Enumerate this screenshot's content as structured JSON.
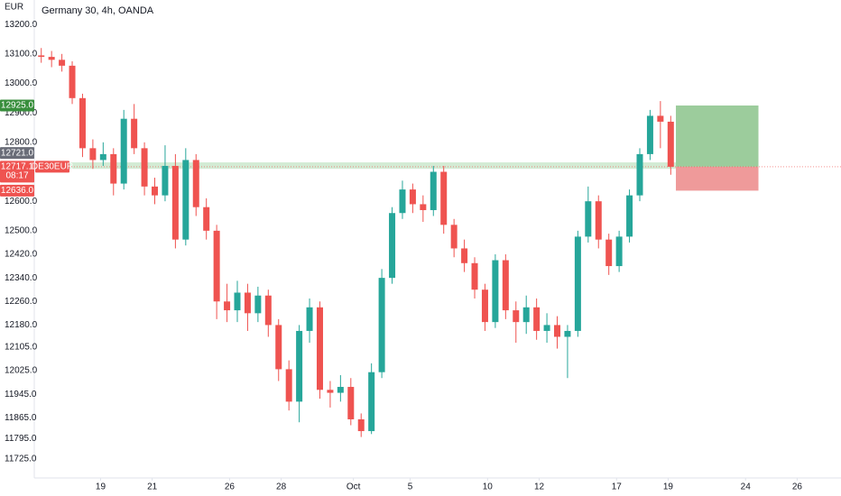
{
  "chart_data": {
    "type": "candlestick",
    "title": "Germany 30, 4h, OANDA",
    "y_axis_label": "EUR",
    "symbol": "DE30EUR",
    "up_color": "#26a69a",
    "down_color": "#ef5350",
    "grid": false,
    "xlim": [
      -2.5,
      28.7
    ],
    "ylim": [
      11661,
      13283
    ],
    "xticks": [
      {
        "value": 0,
        "label": "19"
      },
      {
        "value": 2,
        "label": "21"
      },
      {
        "value": 5,
        "label": "26"
      },
      {
        "value": 7,
        "label": "28"
      },
      {
        "value": 9.8,
        "label": "Oct"
      },
      {
        "value": 12,
        "label": "5"
      },
      {
        "value": 15,
        "label": "10"
      },
      {
        "value": 17,
        "label": "12"
      },
      {
        "value": 20,
        "label": "17"
      },
      {
        "value": 22,
        "label": "19"
      },
      {
        "value": 25,
        "label": "24"
      },
      {
        "value": 27,
        "label": "26"
      }
    ],
    "yticks": [
      {
        "value": 13200,
        "label": "13200.0"
      },
      {
        "value": 13100,
        "label": "13100.0"
      },
      {
        "value": 13000,
        "label": "13000.0"
      },
      {
        "value": 12900,
        "label": "12900.0"
      },
      {
        "value": 12800,
        "label": "12800.0"
      },
      {
        "value": 12600,
        "label": "12600.0"
      },
      {
        "value": 12500,
        "label": "12500.0"
      },
      {
        "value": 12420,
        "label": "12420.0"
      },
      {
        "value": 12340,
        "label": "12340.0"
      },
      {
        "value": 12260,
        "label": "12260.0"
      },
      {
        "value": 12180,
        "label": "12180.0"
      },
      {
        "value": 12105,
        "label": "12105.0"
      },
      {
        "value": 12025,
        "label": "12025.0"
      },
      {
        "value": 11945,
        "label": "11945.0"
      },
      {
        "value": 11865,
        "label": "11865.0"
      },
      {
        "value": 11795,
        "label": "11795.0"
      },
      {
        "value": 11725,
        "label": "11725.0"
      }
    ],
    "x": [
      -2.3,
      -1.9,
      -1.5,
      -1.1,
      -0.7,
      -0.3,
      0.1,
      0.5,
      0.9,
      1.3,
      1.7,
      2.1,
      2.5,
      2.9,
      3.3,
      3.7,
      4.1,
      4.5,
      4.9,
      5.3,
      5.7,
      6.1,
      6.5,
      6.9,
      7.3,
      7.7,
      8.1,
      8.5,
      8.9,
      9.3,
      9.7,
      10.1,
      10.5,
      10.9,
      11.3,
      11.7,
      12.1,
      12.5,
      12.9,
      13.3,
      13.7,
      14.1,
      14.5,
      14.9,
      15.3,
      15.7,
      16.1,
      16.5,
      16.9,
      17.3,
      17.7,
      18.1,
      18.5,
      18.9,
      19.3,
      19.7,
      20.1,
      20.5,
      20.9,
      21.3,
      21.7,
      22.1
    ],
    "open": [
      13095,
      13090,
      13080,
      13060,
      12950,
      12780,
      12740,
      12760,
      12660,
      12880,
      12780,
      12650,
      12620,
      12720,
      12470,
      12740,
      12580,
      12500,
      12260,
      12230,
      12290,
      12220,
      12280,
      12180,
      12030,
      11920,
      12160,
      12240,
      11960,
      11950,
      11970,
      11860,
      11820,
      12020,
      12340,
      12560,
      12640,
      12590,
      12570,
      12700,
      12520,
      12440,
      12390,
      12300,
      12190,
      12400,
      12230,
      12190,
      12240,
      12160,
      12180,
      12140,
      12160,
      12480,
      12600,
      12470,
      12380,
      12480,
      12620,
      12760,
      12890,
      12870
    ],
    "high": [
      13120,
      13110,
      13100,
      13075,
      12965,
      12810,
      12800,
      12780,
      12910,
      12930,
      12800,
      12680,
      12790,
      12760,
      12780,
      12760,
      12610,
      12520,
      12320,
      12330,
      12320,
      12310,
      12300,
      12200,
      12060,
      12180,
      12270,
      12260,
      11990,
      12010,
      12000,
      11880,
      12050,
      12370,
      12580,
      12670,
      12660,
      12620,
      12720,
      12720,
      12540,
      12470,
      12410,
      12320,
      12420,
      12420,
      12260,
      12280,
      12270,
      12220,
      12210,
      12180,
      12500,
      12650,
      12620,
      12490,
      12500,
      12640,
      12780,
      12910,
      12940,
      12890
    ],
    "low": [
      13070,
      13055,
      13040,
      12930,
      12750,
      12710,
      12720,
      12620,
      12640,
      12760,
      12620,
      12590,
      12600,
      12440,
      12450,
      12550,
      12470,
      12200,
      12190,
      12190,
      12160,
      12190,
      12140,
      11990,
      11890,
      11850,
      12120,
      11930,
      11900,
      11920,
      11840,
      11800,
      11810,
      12000,
      12320,
      12540,
      12560,
      12530,
      12550,
      12490,
      12410,
      12360,
      12270,
      12160,
      12170,
      12200,
      12120,
      12150,
      12130,
      12120,
      12100,
      12000,
      12140,
      12460,
      12440,
      12350,
      12360,
      12460,
      12600,
      12740,
      12780,
      12690
    ],
    "close": [
      13090,
      13080,
      13060,
      12950,
      12780,
      12740,
      12760,
      12660,
      12880,
      12780,
      12650,
      12620,
      12720,
      12470,
      12740,
      12580,
      12500,
      12260,
      12230,
      12290,
      12220,
      12280,
      12180,
      12030,
      11920,
      12160,
      12240,
      11960,
      11950,
      11970,
      11860,
      11820,
      12020,
      12340,
      12560,
      12640,
      12590,
      12570,
      12700,
      12520,
      12440,
      12390,
      12300,
      12190,
      12400,
      12230,
      12190,
      12240,
      12160,
      12180,
      12140,
      12160,
      12480,
      12600,
      12470,
      12380,
      12480,
      12620,
      12760,
      12890,
      12870,
      12717.1
    ],
    "zone": {
      "low": 12710,
      "high": 12732,
      "x": [
        -1.2,
        22.3
      ],
      "color": "#c8e6c9"
    },
    "position": {
      "entry": 12717.1,
      "target": 12925,
      "stop": 12636,
      "x": [
        22.3,
        25.5
      ],
      "profit_color": "#9ccc9c",
      "loss_color": "#ef9a9a"
    },
    "price_tags": [
      {
        "value": 12925,
        "label": "12925.0",
        "color": "#388e3c"
      },
      {
        "value": 12721,
        "label": "12721.0",
        "color": "#6a6d78"
      },
      {
        "value": 12717.1,
        "label": "12717.1",
        "sub": "08:17",
        "color": "#ef5350"
      },
      {
        "value": 12636,
        "label": "12636.0",
        "color": "#ef5350"
      }
    ]
  }
}
